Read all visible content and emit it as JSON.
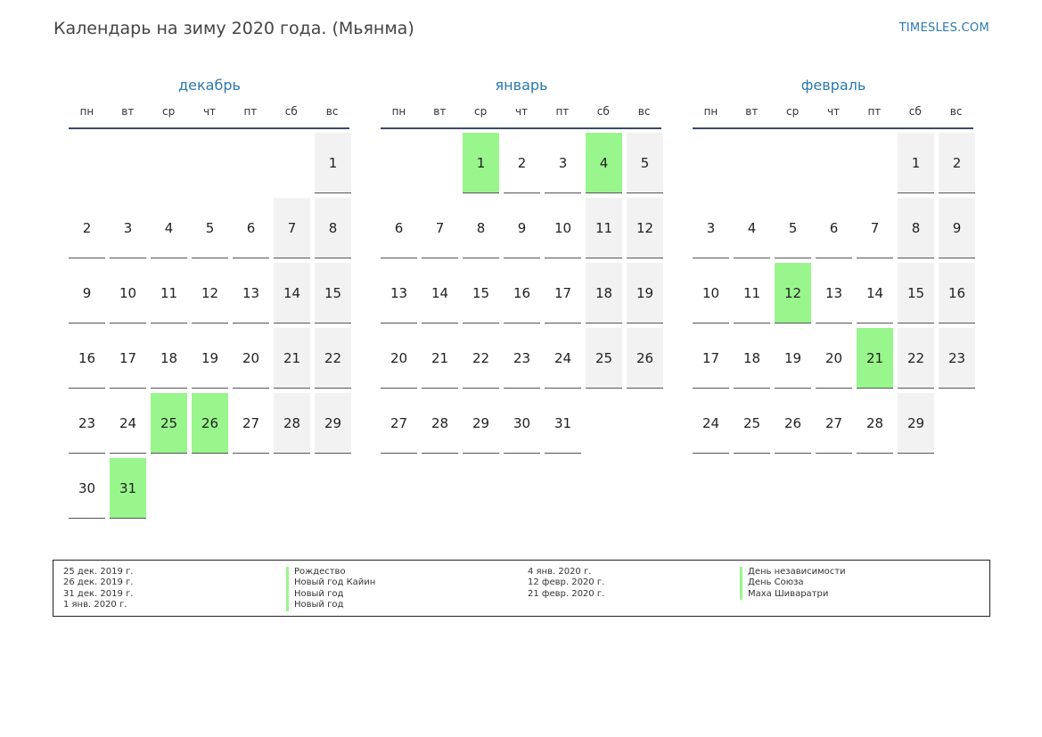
{
  "header": {
    "title": "Календарь на зиму 2020 года. (Мьянма)",
    "site": "TIMESLES.COM"
  },
  "weekdays": [
    "пн",
    "вт",
    "ср",
    "чт",
    "пт",
    "сб",
    "вс"
  ],
  "months": [
    {
      "name": "декабрь",
      "offset": 6,
      "days": 31,
      "holidays": [
        25,
        26,
        31
      ]
    },
    {
      "name": "январь",
      "offset": 2,
      "days": 31,
      "holidays": [
        1,
        4
      ]
    },
    {
      "name": "февраль",
      "offset": 5,
      "days": 29,
      "holidays": [
        12,
        21
      ]
    }
  ],
  "legend": [
    {
      "date": "25 дек. 2019 г.",
      "name": "Рождество"
    },
    {
      "date": "26 дек. 2019 г.",
      "name": "Новый год Кайин"
    },
    {
      "date": "31 дек. 2019 г.",
      "name": "Новый год"
    },
    {
      "date": "1 янв. 2020 г.",
      "name": "Новый год"
    },
    {
      "date": "4 янв. 2020 г.",
      "name": "День независимости"
    },
    {
      "date": "12 февр. 2020 г.",
      "name": "День Союза"
    },
    {
      "date": "21 февр. 2020 г.",
      "name": "Маха Шиваратри"
    }
  ],
  "colors": {
    "holiday": "#99f68c",
    "weekend": "#f2f2f2",
    "accent": "#2a7ab0"
  }
}
